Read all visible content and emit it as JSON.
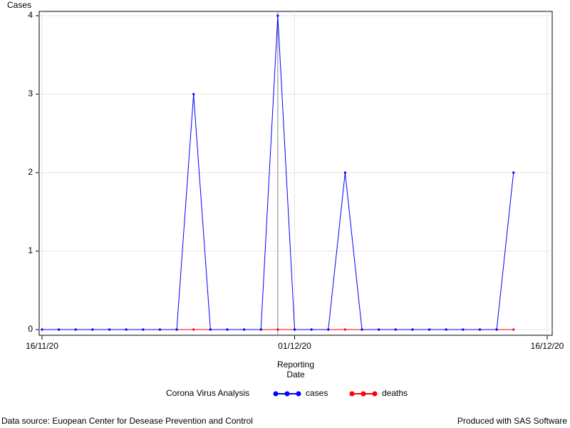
{
  "chart_data": {
    "type": "line",
    "ylabel": "Cases",
    "xlabel": "Reporting Date",
    "legend_title": "Corona Virus Analysis",
    "x": [
      "16/11/20",
      "17/11/20",
      "18/11/20",
      "19/11/20",
      "20/11/20",
      "21/11/20",
      "22/11/20",
      "23/11/20",
      "24/11/20",
      "25/11/20",
      "26/11/20",
      "27/11/20",
      "28/11/20",
      "29/11/20",
      "30/11/20",
      "01/12/20",
      "02/12/20",
      "03/12/20",
      "04/12/20",
      "05/12/20",
      "06/12/20",
      "07/12/20",
      "08/12/20",
      "09/12/20",
      "10/12/20",
      "11/12/20",
      "12/12/20",
      "13/12/20",
      "14/12/20"
    ],
    "series": [
      {
        "name": "cases",
        "color": "#0000ff",
        "values": [
          0,
          0,
          0,
          0,
          0,
          0,
          0,
          0,
          0,
          3,
          0,
          0,
          0,
          0,
          4,
          0,
          0,
          0,
          2,
          0,
          0,
          0,
          0,
          0,
          0,
          0,
          0,
          0,
          2
        ]
      },
      {
        "name": "deaths",
        "color": "#ff0000",
        "values": [
          0,
          0,
          0,
          0,
          0,
          0,
          0,
          0,
          0,
          0,
          0,
          0,
          0,
          0,
          0,
          0,
          0,
          0,
          0,
          0,
          0,
          0,
          0,
          0,
          0,
          0,
          0,
          0,
          0
        ]
      }
    ],
    "xlim": [
      "16/11/20",
      "16/12/20"
    ],
    "xticks": [
      "16/11/20",
      "01/12/20",
      "16/12/20"
    ],
    "ylim": [
      0,
      4
    ],
    "yticks": [
      0,
      1,
      2,
      3,
      4
    ],
    "grid": true,
    "reference_x": "30/11/20",
    "legend": "bottom",
    "footnote_left": "Data source: Euopean Center for Desease Prevention and Control",
    "footnote_right": "Produced with SAS Software"
  }
}
